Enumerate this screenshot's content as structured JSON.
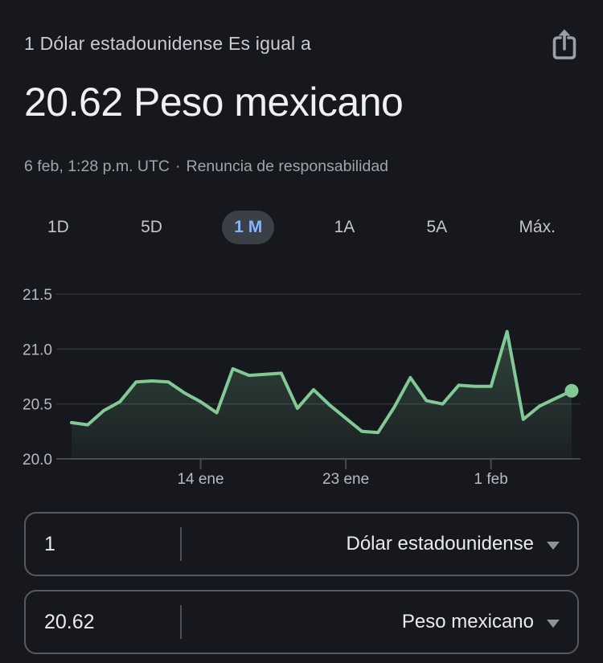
{
  "header": {
    "equation_label": "1 Dólar estadounidense Es igual a"
  },
  "conversion": {
    "result": "20.62 Peso mexicano",
    "timestamp": "6 feb, 1:28 p.m. UTC",
    "separator": "·",
    "disclaimer": "Renuncia de responsabilidad"
  },
  "range_tabs": {
    "items": [
      {
        "label": "1D",
        "selected": false
      },
      {
        "label": "5D",
        "selected": false
      },
      {
        "label": "1 M",
        "selected": true
      },
      {
        "label": "1A",
        "selected": false
      },
      {
        "label": "5A",
        "selected": false
      },
      {
        "label": "Máx.",
        "selected": false
      }
    ]
  },
  "chart_data": {
    "type": "area",
    "title": "USD to MXN exchange rate, 1 month",
    "x_dates": [
      "6 ene",
      "7 ene",
      "8 ene",
      "9 ene",
      "10 ene",
      "11 ene",
      "12 ene",
      "13 ene",
      "14 ene",
      "15 ene",
      "16 ene",
      "17 ene",
      "18 ene",
      "19 ene",
      "20 ene",
      "21 ene",
      "22 ene",
      "23 ene",
      "24 ene",
      "25 ene",
      "26 ene",
      "27 ene",
      "28 ene",
      "29 ene",
      "30 ene",
      "31 ene",
      "1 feb",
      "2 feb",
      "3 feb",
      "4 feb",
      "5 feb",
      "6 feb"
    ],
    "values": [
      20.33,
      20.31,
      20.44,
      20.52,
      20.7,
      20.71,
      20.7,
      20.6,
      20.52,
      20.42,
      20.82,
      20.76,
      20.77,
      20.78,
      20.46,
      20.63,
      20.49,
      20.37,
      20.25,
      20.24,
      20.47,
      20.74,
      20.53,
      20.5,
      20.67,
      20.66,
      20.66,
      21.16,
      20.36,
      20.48,
      20.55,
      20.62
    ],
    "endpoint_value": 20.62,
    "y_ticks": [
      "21.5",
      "21.0",
      "20.5",
      "20.0"
    ],
    "x_tick_labels": [
      {
        "label": "14 ene",
        "index": 8
      },
      {
        "label": "23 ene",
        "index": 17
      },
      {
        "label": "1 feb",
        "index": 26
      }
    ],
    "ylim": [
      20.0,
      21.5
    ],
    "grid": true,
    "line_color": "#81c995"
  },
  "converter": {
    "rows": [
      {
        "amount": "1",
        "currency": "Dólar estadounidense"
      },
      {
        "amount": "20.62",
        "currency": "Peso mexicano"
      }
    ]
  },
  "colors": {
    "background": "#16181d",
    "accent_blue": "#8ab4f8",
    "line_green": "#81c995",
    "pill_gray": "#3b4046",
    "grid_gray": "#303338",
    "axis_gray": "#46494f",
    "icon_gray": "#9aa0a6"
  }
}
